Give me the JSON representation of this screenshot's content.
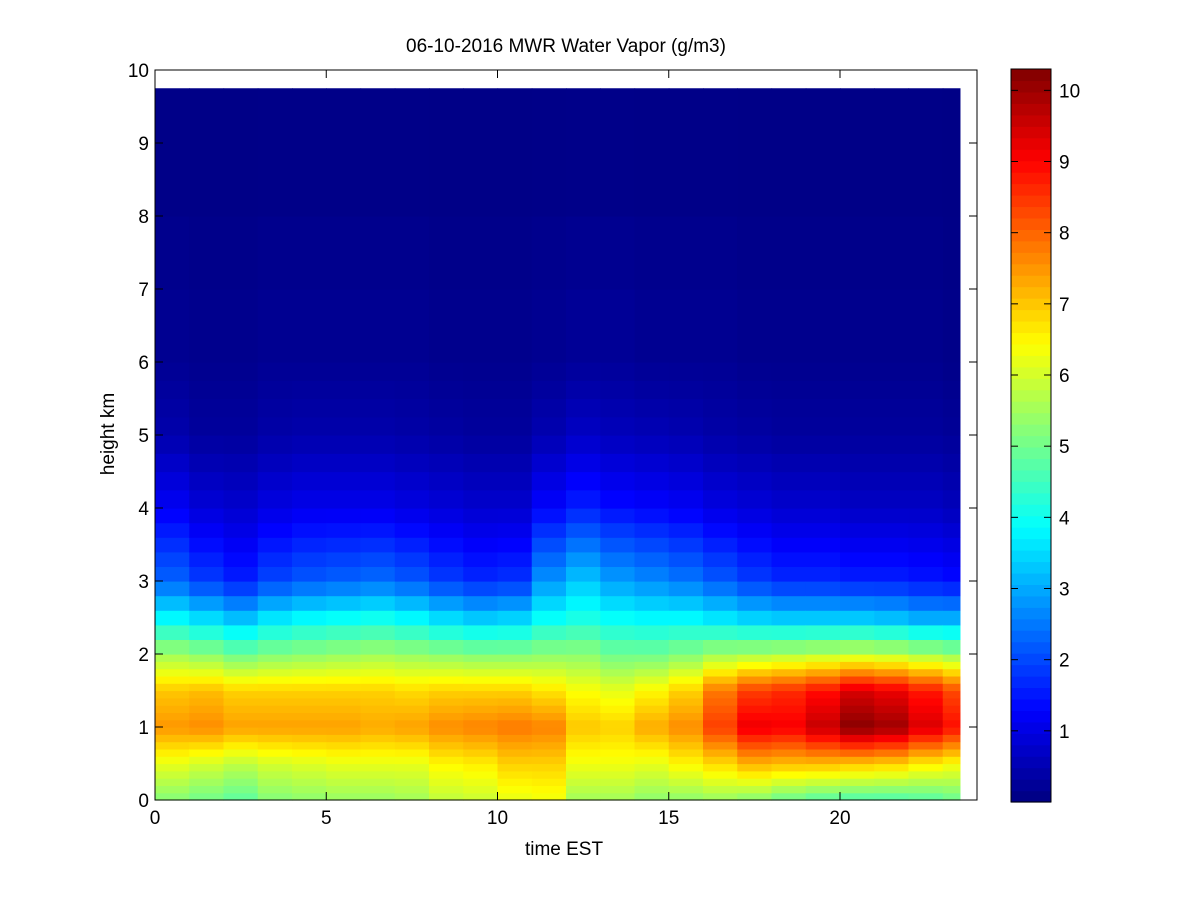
{
  "chart_data": {
    "type": "heatmap",
    "title": "06-10-2016 MWR Water Vapor (g/m3)",
    "xlabel": "time EST",
    "ylabel": "height km",
    "xlim": [
      0,
      24
    ],
    "ylim": [
      0,
      10
    ],
    "x_ticks": [
      "0",
      "5",
      "10",
      "15",
      "20"
    ],
    "x_tick_values": [
      0,
      5,
      10,
      15,
      20
    ],
    "y_ticks": [
      "0",
      "1",
      "2",
      "3",
      "4",
      "5",
      "6",
      "7",
      "8",
      "9",
      "10"
    ],
    "y_tick_values": [
      0,
      1,
      2,
      3,
      4,
      5,
      6,
      7,
      8,
      9,
      10
    ],
    "data_x_range": [
      0,
      23.5
    ],
    "data_y_range": [
      0,
      9.75
    ],
    "colorbar": {
      "colormap": "jet",
      "clim": [
        0,
        10.3
      ],
      "ticks": [
        "1",
        "2",
        "3",
        "4",
        "5",
        "6",
        "7",
        "8",
        "9",
        "10"
      ],
      "tick_values": [
        1,
        2,
        3,
        4,
        5,
        6,
        7,
        8,
        9,
        10
      ]
    },
    "profile_heights_km": [
      0,
      0.5,
      1.0,
      1.5,
      2.0,
      2.5,
      3.0,
      4.0,
      5.0,
      6.0,
      9.75
    ],
    "time_hours": [
      0,
      1,
      2,
      3,
      4,
      5,
      6,
      7,
      8,
      9,
      10,
      11,
      12,
      13,
      14,
      15,
      16,
      17,
      18,
      19,
      20,
      21,
      22,
      23
    ],
    "profiles": [
      [
        5.2,
        6.2,
        7.5,
        7.0,
        5.5,
        3.8,
        2.3,
        1.2,
        0.45,
        0.2,
        0.05
      ],
      [
        5.0,
        6.0,
        7.6,
        7.1,
        5.3,
        3.5,
        1.9,
        0.9,
        0.3,
        0.15,
        0.05
      ],
      [
        4.8,
        5.8,
        7.4,
        6.9,
        5.0,
        3.2,
        1.6,
        0.8,
        0.3,
        0.15,
        0.05
      ],
      [
        5.2,
        6.0,
        7.4,
        6.9,
        5.2,
        3.6,
        2.0,
        1.0,
        0.4,
        0.2,
        0.05
      ],
      [
        5.3,
        6.1,
        7.4,
        6.9,
        5.3,
        3.8,
        2.2,
        1.1,
        0.45,
        0.2,
        0.05
      ],
      [
        5.4,
        6.2,
        7.4,
        6.9,
        5.4,
        3.9,
        2.3,
        1.1,
        0.45,
        0.2,
        0.05
      ],
      [
        5.4,
        6.2,
        7.3,
        6.9,
        5.5,
        4.0,
        2.4,
        1.1,
        0.45,
        0.2,
        0.05
      ],
      [
        5.5,
        6.2,
        7.4,
        6.8,
        5.4,
        3.8,
        2.2,
        1.0,
        0.4,
        0.2,
        0.05
      ],
      [
        5.8,
        6.5,
        7.6,
        6.9,
        5.3,
        3.5,
        1.9,
        0.9,
        0.35,
        0.15,
        0.05
      ],
      [
        5.9,
        6.6,
        7.7,
        6.9,
        5.2,
        3.3,
        1.7,
        0.8,
        0.3,
        0.15,
        0.05
      ],
      [
        6.2,
        6.9,
        7.8,
        6.9,
        5.2,
        3.4,
        1.8,
        0.8,
        0.3,
        0.15,
        0.05
      ],
      [
        6.3,
        6.9,
        7.7,
        6.7,
        5.3,
        3.9,
        2.8,
        1.3,
        0.5,
        0.2,
        0.05
      ],
      [
        5.5,
        6.3,
        7.0,
        6.4,
        5.3,
        4.1,
        3.3,
        1.6,
        0.7,
        0.25,
        0.05
      ],
      [
        5.5,
        6.3,
        6.9,
        6.2,
        5.0,
        3.9,
        2.9,
        1.4,
        0.6,
        0.25,
        0.05
      ],
      [
        5.3,
        6.2,
        7.3,
        6.5,
        5.0,
        3.8,
        2.7,
        1.3,
        0.55,
        0.2,
        0.05
      ],
      [
        5.3,
        6.5,
        7.6,
        6.9,
        5.2,
        3.8,
        2.5,
        1.2,
        0.5,
        0.2,
        0.05
      ],
      [
        5.4,
        6.8,
        8.4,
        7.8,
        5.5,
        3.6,
        2.2,
        1.0,
        0.4,
        0.2,
        0.05
      ],
      [
        5.2,
        7.2,
        9.2,
        8.4,
        5.6,
        3.4,
        1.9,
        0.9,
        0.35,
        0.15,
        0.05
      ],
      [
        4.9,
        7.1,
        9.1,
        8.6,
        5.7,
        3.3,
        1.7,
        0.8,
        0.3,
        0.15,
        0.05
      ],
      [
        4.7,
        7.1,
        9.6,
        8.9,
        5.8,
        3.3,
        1.7,
        0.8,
        0.3,
        0.15,
        0.05
      ],
      [
        4.6,
        7.0,
        10.2,
        9.4,
        5.9,
        3.3,
        1.6,
        0.7,
        0.3,
        0.15,
        0.05
      ],
      [
        4.6,
        6.9,
        10.0,
        9.2,
        5.8,
        3.2,
        1.6,
        0.7,
        0.3,
        0.15,
        0.05
      ],
      [
        4.7,
        6.6,
        9.4,
        8.8,
        5.6,
        3.0,
        1.5,
        0.7,
        0.3,
        0.15,
        0.05
      ],
      [
        4.9,
        6.4,
        8.9,
        8.3,
        5.4,
        3.0,
        1.4,
        0.6,
        0.25,
        0.1,
        0.05
      ]
    ]
  }
}
